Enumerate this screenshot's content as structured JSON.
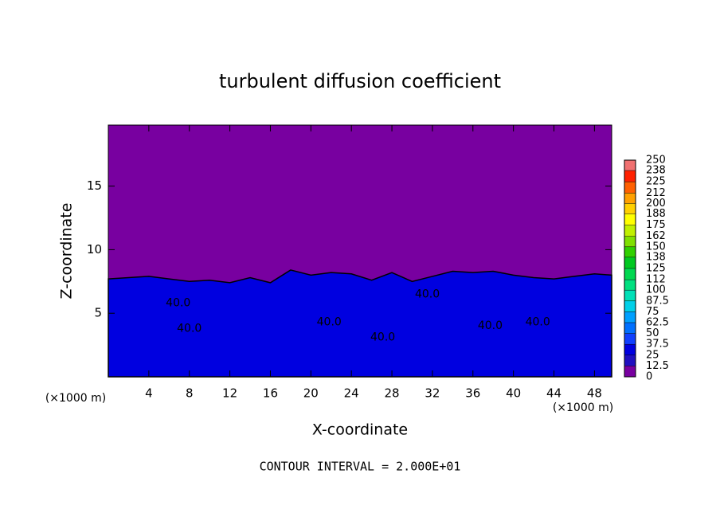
{
  "chart_data": {
    "type": "contour",
    "title": "turbulent diffusion coefficient",
    "xlabel": "X-coordinate",
    "ylabel": "Z-coordinate",
    "x_unit": "(×1000 m)",
    "footer": "CONTOUR INTERVAL = 2.000E+01",
    "xlim": [
      0,
      49.7
    ],
    "ylim": [
      0,
      19.8
    ],
    "xticks": [
      4,
      8,
      12,
      16,
      20,
      24,
      28,
      32,
      36,
      40,
      44,
      48
    ],
    "yticks": [
      5,
      10,
      15
    ],
    "background_value": 0,
    "layer": {
      "value": 30,
      "x": [
        0,
        2,
        4,
        6,
        8,
        10,
        12,
        14,
        16,
        18,
        20,
        22,
        24,
        26,
        28,
        30,
        32,
        34,
        36,
        38,
        40,
        42,
        44,
        46,
        48,
        50
      ],
      "top": [
        7.7,
        7.8,
        7.9,
        7.7,
        7.5,
        7.6,
        7.4,
        7.8,
        7.4,
        8.4,
        8.0,
        8.2,
        8.1,
        7.6,
        8.2,
        7.5,
        7.9,
        8.3,
        8.2,
        8.3,
        8.0,
        7.8,
        7.7,
        7.9,
        8.1,
        8.0
      ]
    },
    "contour_labels": [
      {
        "text": "40.0",
        "x": 6.9,
        "y": 5.8
      },
      {
        "text": "40.0",
        "x": 8.0,
        "y": 3.8
      },
      {
        "text": "40.0",
        "x": 21.8,
        "y": 4.3
      },
      {
        "text": "40.0",
        "x": 27.1,
        "y": 3.1
      },
      {
        "text": "40.0",
        "x": 31.5,
        "y": 6.5
      },
      {
        "text": "40.0",
        "x": 37.7,
        "y": 4.0
      },
      {
        "text": "40.0",
        "x": 42.4,
        "y": 4.3
      }
    ],
    "colorbar": {
      "levels": [
        0,
        12.5,
        25,
        37.5,
        50,
        62.5,
        75,
        87.5,
        100,
        112,
        125,
        138,
        150,
        162,
        175,
        188,
        200,
        212,
        225,
        238,
        250
      ],
      "colors": [
        "#7800a0",
        "#2010c0",
        "#0000e0",
        "#1040ff",
        "#0070ff",
        "#00a0ff",
        "#00d0e8",
        "#00e0b8",
        "#00e080",
        "#00d850",
        "#00c820",
        "#30d000",
        "#80e000",
        "#c0f000",
        "#ffff00",
        "#ffd000",
        "#ffa000",
        "#ff6000",
        "#ff2000",
        "#f07070"
      ]
    }
  }
}
